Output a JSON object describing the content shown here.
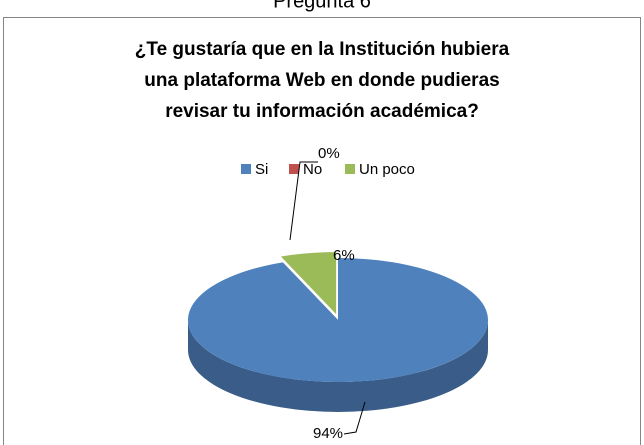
{
  "heading": "Pregunta 6",
  "chart_data": {
    "type": "pie3d",
    "title": [
      "¿Te gustaría que en la Institución hubiera",
      "una plataforma Web en donde pudieras",
      "revisar tu información académica?"
    ],
    "categories": [
      "Si",
      "No",
      "Un poco"
    ],
    "values": [
      94,
      0,
      6
    ],
    "value_labels": [
      "94%",
      "0%",
      "6%"
    ],
    "colors": [
      "#4f81bd",
      "#c0504d",
      "#9bbb59"
    ],
    "legend": "top"
  }
}
